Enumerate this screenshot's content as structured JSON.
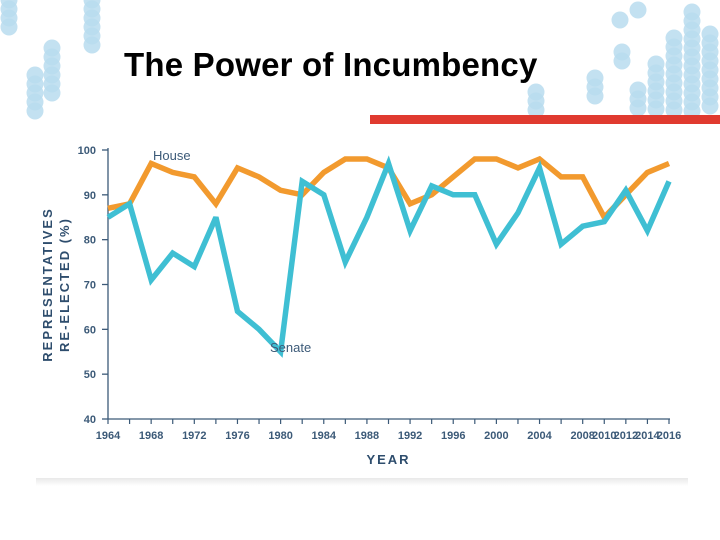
{
  "slide": {
    "title": "The Power of Incumbency",
    "accent_color": "#e03a2f",
    "decoration_color": "#b8dcef"
  },
  "chart_data": {
    "type": "line",
    "title": "",
    "xlabel": "YEAR",
    "ylabel_lines": [
      "REPRESENTATIVES",
      "RE-ELECTED (%)"
    ],
    "xlim": [
      1964,
      2016
    ],
    "ylim": [
      40,
      100
    ],
    "x_ticks": [
      1964,
      1968,
      1972,
      1976,
      1980,
      1984,
      1988,
      1992,
      1996,
      2000,
      2004,
      2008,
      2010,
      2012,
      2014,
      2016
    ],
    "y_ticks": [
      40,
      50,
      60,
      70,
      80,
      90,
      100
    ],
    "grid": false,
    "x": [
      1964,
      1966,
      1968,
      1970,
      1972,
      1974,
      1976,
      1978,
      1980,
      1982,
      1984,
      1986,
      1988,
      1990,
      1992,
      1994,
      1996,
      1998,
      2000,
      2002,
      2004,
      2006,
      2008,
      2010,
      2012,
      2014,
      2016
    ],
    "series": [
      {
        "name": "House",
        "color": "#f29a2e",
        "values": [
          87,
          88,
          97,
          95,
          94,
          88,
          96,
          94,
          91,
          90,
          95,
          98,
          98,
          96,
          88,
          90,
          94,
          98,
          98,
          96,
          98,
          94,
          94,
          85,
          90,
          95,
          97
        ]
      },
      {
        "name": "Senate",
        "color": "#3fbfd3",
        "values": [
          85,
          88,
          71,
          77,
          74,
          85,
          64,
          60,
          55,
          93,
          90,
          75,
          85,
          97,
          82,
          92,
          90,
          90,
          79,
          86,
          96,
          79,
          83,
          84,
          91,
          82,
          93
        ]
      }
    ],
    "series_labels": [
      "House",
      "Senate"
    ]
  }
}
